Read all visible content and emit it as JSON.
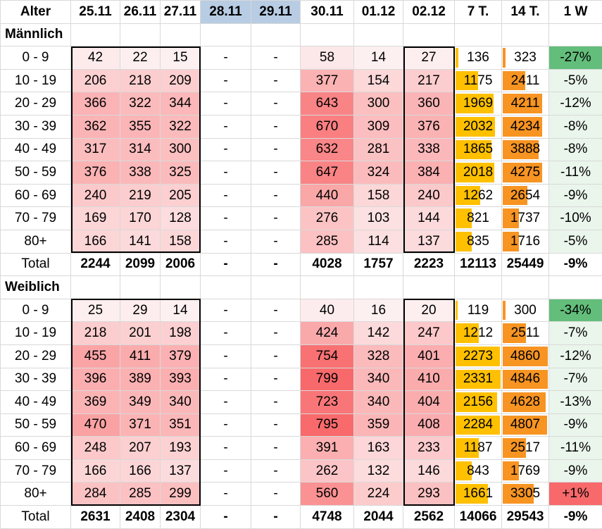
{
  "header": [
    "Alter",
    "25.11",
    "26.11",
    "27.11",
    "28.11",
    "29.11",
    "30.11",
    "01.12",
    "02.12",
    "7 T.",
    "14 T.",
    "1 W"
  ],
  "highlight_cols": [
    4,
    5
  ],
  "sections": [
    {
      "title": "Männlich",
      "rows": [
        {
          "age": "0 - 9",
          "days": [
            "42",
            "22",
            "15",
            "-",
            "-",
            "58",
            "14",
            "27"
          ],
          "t7": "136",
          "t14": "323",
          "w1": "-27%"
        },
        {
          "age": "10 - 19",
          "days": [
            "206",
            "218",
            "209",
            "-",
            "-",
            "377",
            "154",
            "217"
          ],
          "t7": "1175",
          "t14": "2411",
          "w1": "-5%"
        },
        {
          "age": "20 - 29",
          "days": [
            "366",
            "322",
            "344",
            "-",
            "-",
            "643",
            "300",
            "360"
          ],
          "t7": "1969",
          "t14": "4211",
          "w1": "-12%"
        },
        {
          "age": "30 - 39",
          "days": [
            "362",
            "355",
            "322",
            "-",
            "-",
            "670",
            "309",
            "376"
          ],
          "t7": "2032",
          "t14": "4234",
          "w1": "-8%"
        },
        {
          "age": "40 - 49",
          "days": [
            "317",
            "314",
            "300",
            "-",
            "-",
            "632",
            "281",
            "338"
          ],
          "t7": "1865",
          "t14": "3888",
          "w1": "-8%"
        },
        {
          "age": "50 - 59",
          "days": [
            "376",
            "338",
            "325",
            "-",
            "-",
            "647",
            "324",
            "384"
          ],
          "t7": "2018",
          "t14": "4275",
          "w1": "-11%"
        },
        {
          "age": "60 - 69",
          "days": [
            "240",
            "219",
            "205",
            "-",
            "-",
            "440",
            "158",
            "240"
          ],
          "t7": "1262",
          "t14": "2654",
          "w1": "-9%"
        },
        {
          "age": "70 - 79",
          "days": [
            "169",
            "170",
            "128",
            "-",
            "-",
            "276",
            "103",
            "144"
          ],
          "t7": "821",
          "t14": "1737",
          "w1": "-10%"
        },
        {
          "age": "80+",
          "days": [
            "166",
            "141",
            "158",
            "-",
            "-",
            "285",
            "114",
            "137"
          ],
          "t7": "835",
          "t14": "1716",
          "w1": "-5%"
        }
      ],
      "total": {
        "label": "Total",
        "days": [
          "2244",
          "2099",
          "2006",
          "-",
          "-",
          "4028",
          "1757",
          "2223"
        ],
        "t7": "12113",
        "t14": "25449",
        "w1": "-9%"
      }
    },
    {
      "title": "Weiblich",
      "rows": [
        {
          "age": "0 - 9",
          "days": [
            "25",
            "29",
            "14",
            "-",
            "-",
            "40",
            "16",
            "20"
          ],
          "t7": "119",
          "t14": "300",
          "w1": "-34%"
        },
        {
          "age": "10 - 19",
          "days": [
            "218",
            "201",
            "198",
            "-",
            "-",
            "424",
            "142",
            "247"
          ],
          "t7": "1212",
          "t14": "2511",
          "w1": "-7%"
        },
        {
          "age": "20 - 29",
          "days": [
            "455",
            "411",
            "379",
            "-",
            "-",
            "754",
            "328",
            "401"
          ],
          "t7": "2273",
          "t14": "4860",
          "w1": "-12%"
        },
        {
          "age": "30 - 39",
          "days": [
            "396",
            "389",
            "393",
            "-",
            "-",
            "799",
            "340",
            "410"
          ],
          "t7": "2331",
          "t14": "4846",
          "w1": "-7%"
        },
        {
          "age": "40 - 49",
          "days": [
            "369",
            "349",
            "340",
            "-",
            "-",
            "723",
            "340",
            "404"
          ],
          "t7": "2156",
          "t14": "4628",
          "w1": "-13%"
        },
        {
          "age": "50 - 59",
          "days": [
            "470",
            "371",
            "351",
            "-",
            "-",
            "795",
            "359",
            "408"
          ],
          "t7": "2284",
          "t14": "4807",
          "w1": "-9%"
        },
        {
          "age": "60 - 69",
          "days": [
            "248",
            "207",
            "193",
            "-",
            "-",
            "391",
            "163",
            "233"
          ],
          "t7": "1187",
          "t14": "2517",
          "w1": "-11%"
        },
        {
          "age": "70 - 79",
          "days": [
            "166",
            "166",
            "137",
            "-",
            "-",
            "262",
            "132",
            "146"
          ],
          "t7": "843",
          "t14": "1769",
          "w1": "-9%"
        },
        {
          "age": "80+",
          "days": [
            "284",
            "285",
            "299",
            "-",
            "-",
            "560",
            "224",
            "293"
          ],
          "t7": "1661",
          "t14": "3305",
          "w1": "+1%"
        }
      ],
      "total": {
        "label": "Total",
        "days": [
          "2631",
          "2408",
          "2304",
          "-",
          "-",
          "4748",
          "2044",
          "2562"
        ],
        "t7": "14066",
        "t14": "29543",
        "w1": "-9%"
      }
    }
  ],
  "scale": {
    "day_min": 14,
    "day_max": 799,
    "t7_max": 2400,
    "t14_max": 5000
  },
  "colors": {
    "heat_low": "#fdf0f1",
    "heat_high": "#f8696b",
    "bar7": "#ffc000",
    "bar14": "#f79422",
    "w1_green_strong": "#63be7b",
    "w1_green_light": "#eaf5ec",
    "w1_red": "#f8696b",
    "highlight_header": "#b8cce4"
  }
}
